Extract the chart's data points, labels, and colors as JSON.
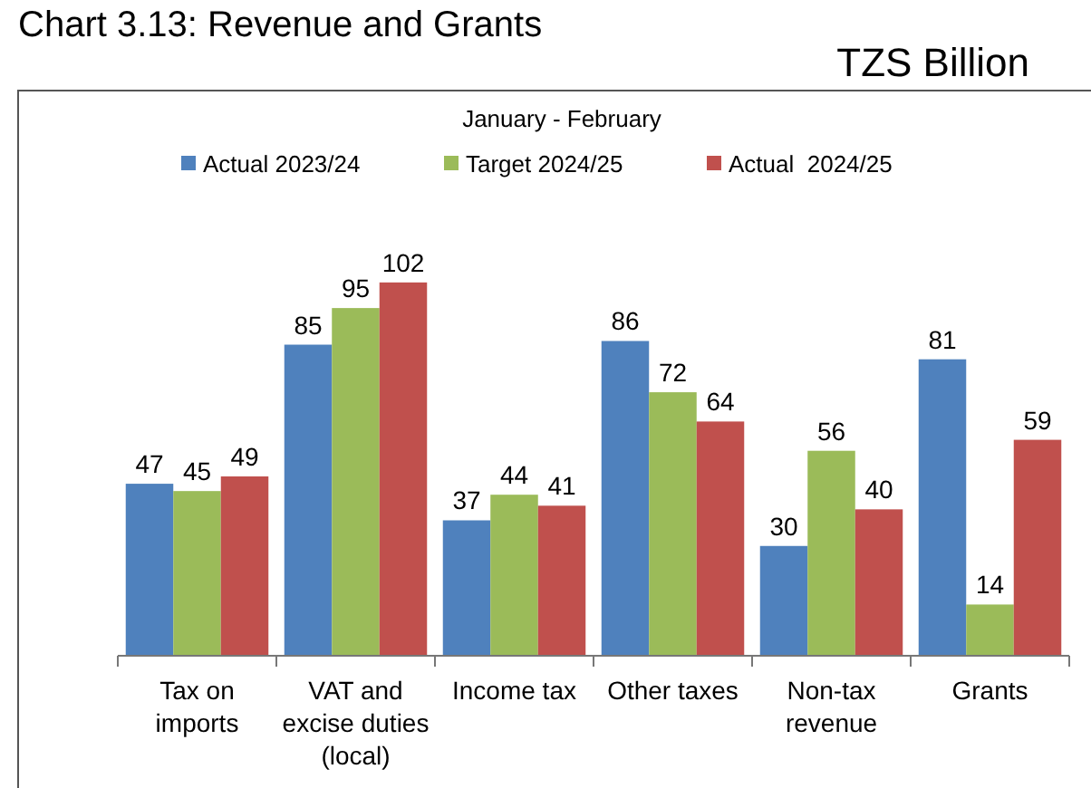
{
  "chart_data": {
    "type": "bar",
    "title": "Chart 3.13: Revenue and Grants",
    "subtitle": "TZS Billion",
    "annotations": [
      "January - February"
    ],
    "categories": [
      "Tax on\nimports",
      "VAT and\nexcise duties\n(local)",
      "Income tax",
      "Other taxes",
      "Non-tax\nrevenue",
      "Grants"
    ],
    "series": [
      {
        "name": "Actual 2023/24",
        "color": "#4f81bd",
        "values": [
          47,
          85,
          37,
          86,
          30,
          81
        ]
      },
      {
        "name": "Target 2024/25",
        "color": "#9bbb59",
        "values": [
          45,
          95,
          44,
          72,
          56,
          14
        ]
      },
      {
        "name": "Actual  2024/25",
        "color": "#c0504d",
        "values": [
          49,
          102,
          41,
          64,
          40,
          59
        ]
      }
    ],
    "data_labels": true,
    "legend": "top"
  }
}
